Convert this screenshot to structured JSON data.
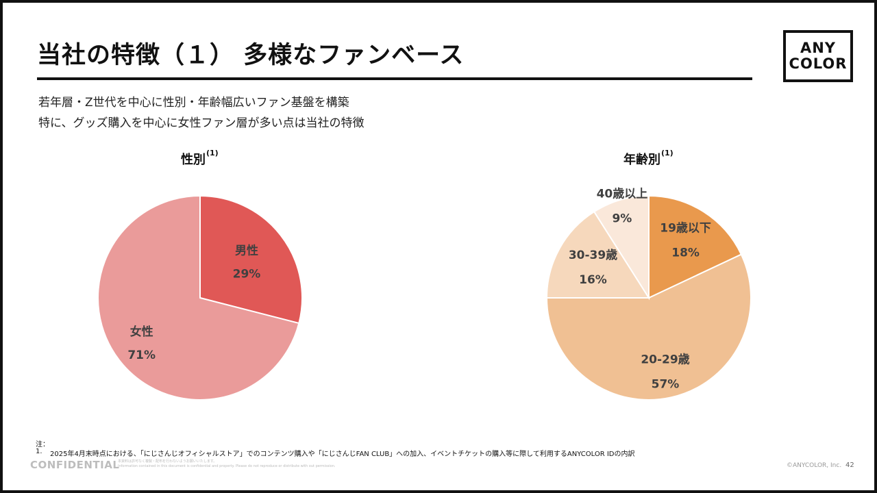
{
  "slide": {
    "title": "当社の特徴（１） 多様なファンベース",
    "logo_line1": "ANY",
    "logo_line2": "COLOR",
    "subtitle_line1": "若年層・Z世代を中心に性別・年齢幅広いファン基盤を構築",
    "subtitle_line2": "特に、グッズ購入を中心に女性ファン層が多い点は当社の特徴"
  },
  "charts": {
    "gender_title": "性別",
    "gender_sup": "(1)",
    "age_title": "年齢別",
    "age_sup": "(1)"
  },
  "chart_data": [
    {
      "type": "pie",
      "title": "性別(1)",
      "categories": [
        "男性",
        "女性"
      ],
      "values": [
        29,
        71
      ],
      "labels": [
        "29%",
        "71%"
      ],
      "colors": [
        "#e05856",
        "#ea9b9a"
      ],
      "start": "12 o'clock, clockwise"
    },
    {
      "type": "pie",
      "title": "年齢別(1)",
      "categories": [
        "19歳以下",
        "20-29歳",
        "30-39歳",
        "40歳以上"
      ],
      "values": [
        18,
        57,
        16,
        9
      ],
      "labels": [
        "18%",
        "57%",
        "16%",
        "9%"
      ],
      "colors": [
        "#e9994d",
        "#f0c093",
        "#f6d8bc",
        "#fae8da"
      ],
      "start": "12 o'clock, clockwise"
    }
  ],
  "footer": {
    "note_heading": "注：",
    "note_1_number": "1.",
    "note_1": "2025年4月末時点における、「にじさんじオフィシャルストア」でのコンテンツ購入や「にじさんじFAN CLUB」への加入、イベントチケットの購入等に際して利用するANYCOLOR IDの内訳",
    "confidential": "CONFIDENTIAL",
    "fine_line1": "本資料は許可なく複製・配布を行わないようお願いいたします。",
    "fine_line2": "Information contained in this document is confidential and property. Please do not reproduce or distribute with out permission.",
    "copyright": "©ANYCOLOR, Inc.",
    "page_number": "42"
  }
}
